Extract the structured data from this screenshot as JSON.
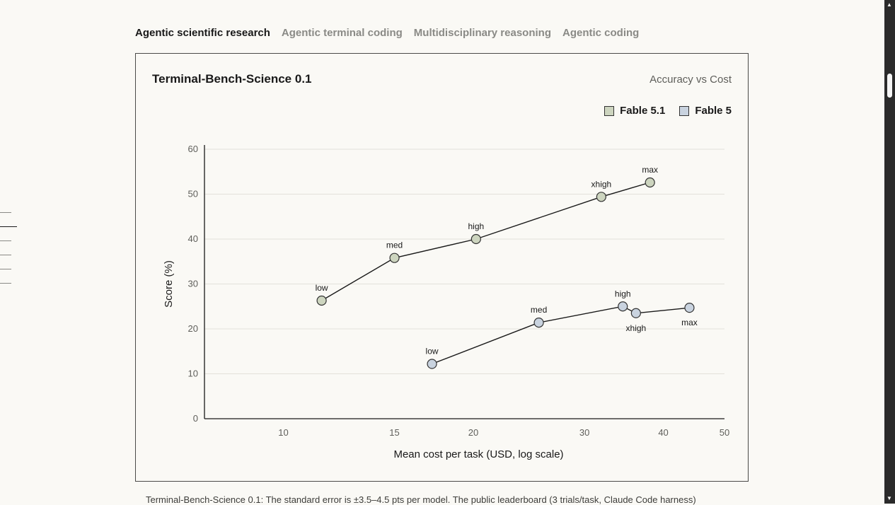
{
  "tabs": [
    {
      "label": "Agentic scientific research",
      "active": true
    },
    {
      "label": "Agentic terminal coding",
      "active": false
    },
    {
      "label": "Multidisciplinary reasoning",
      "active": false
    },
    {
      "label": "Agentic coding",
      "active": false
    }
  ],
  "chart_data": {
    "type": "line",
    "title": "Terminal-Bench-Science 0.1",
    "subtitle": "Accuracy vs Cost",
    "xlabel": "Mean cost per task (USD, log scale)",
    "ylabel": "Score (%)",
    "x_scale": "log",
    "xlim": [
      7.5,
      50
    ],
    "ylim": [
      0,
      60
    ],
    "x_ticks": [
      10,
      15,
      20,
      30,
      40,
      50
    ],
    "y_ticks": [
      0,
      10,
      20,
      30,
      40,
      50,
      60
    ],
    "grid": true,
    "legend_position": "top-right",
    "series": [
      {
        "name": "Fable 5.1",
        "color": "#cdd5bf",
        "points": [
          {
            "label": "low",
            "x": 11.5,
            "y": 26.3
          },
          {
            "label": "med",
            "x": 15.0,
            "y": 35.8
          },
          {
            "label": "high",
            "x": 20.2,
            "y": 40.0
          },
          {
            "label": "xhigh",
            "x": 31.9,
            "y": 49.4
          },
          {
            "label": "max",
            "x": 38.1,
            "y": 52.6
          }
        ]
      },
      {
        "name": "Fable 5",
        "color": "#c9d3df",
        "points": [
          {
            "label": "low",
            "x": 17.2,
            "y": 12.2
          },
          {
            "label": "med",
            "x": 25.4,
            "y": 21.4
          },
          {
            "label": "high",
            "x": 34.5,
            "y": 25.0
          },
          {
            "label": "xhigh",
            "x": 36.2,
            "y": 23.5
          },
          {
            "label": "max",
            "x": 44.0,
            "y": 24.7
          }
        ]
      }
    ]
  },
  "caption": "Terminal-Bench-Science 0.1: The standard error is ±3.5–4.5 pts per model. The public leaderboard (3 trials/task, Claude Code harness)"
}
